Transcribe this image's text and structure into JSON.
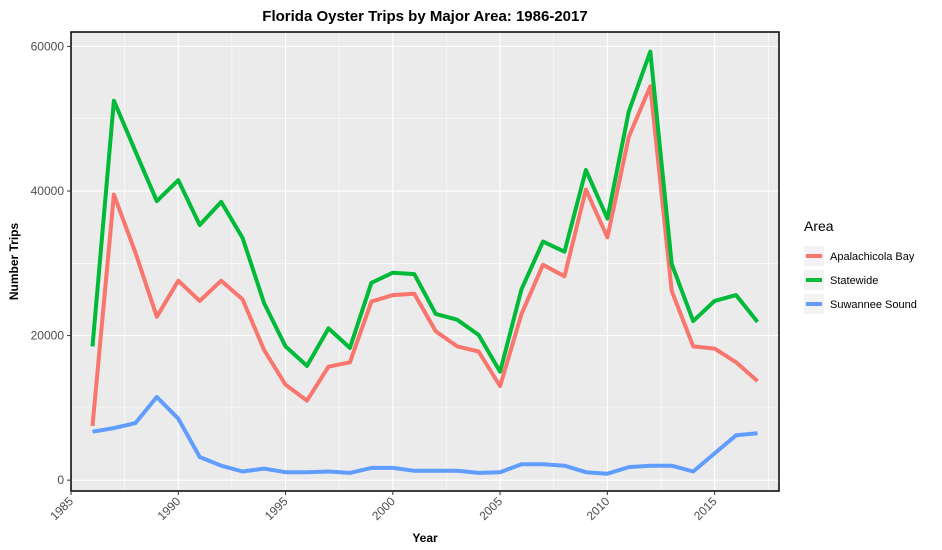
{
  "chart_data": {
    "type": "line",
    "title": "Florida Oyster Trips by Major Area: 1986-2017",
    "xlabel": "Year",
    "ylabel": "Number Trips",
    "xlim": [
      1985,
      2018
    ],
    "ylim": [
      -1500,
      62000
    ],
    "x_ticks": [
      1985,
      1990,
      1995,
      2000,
      2005,
      2010,
      2015
    ],
    "y_ticks": [
      0,
      20000,
      40000,
      60000
    ],
    "x_tick_labels": [
      "1985",
      "1990",
      "1995",
      "2000",
      "2005",
      "2010",
      "2015"
    ],
    "y_tick_labels": [
      "0",
      "20000",
      "40000",
      "60000"
    ],
    "grid": true,
    "legend": {
      "title": "Area",
      "position": "right"
    },
    "x": [
      1986,
      1987,
      1988,
      1989,
      1990,
      1991,
      1992,
      1993,
      1994,
      1995,
      1996,
      1997,
      1998,
      1999,
      2000,
      2001,
      2002,
      2003,
      2004,
      2005,
      2006,
      2007,
      2008,
      2009,
      2010,
      2011,
      2012,
      2013,
      2014,
      2015,
      2016,
      2017
    ],
    "series": [
      {
        "name": "Apalachicola Bay",
        "color": "#F8766D",
        "values": [
          7500,
          39500,
          31500,
          22600,
          27600,
          24800,
          27600,
          25000,
          18000,
          13200,
          11000,
          15700,
          16300,
          24700,
          25600,
          25800,
          20600,
          18500,
          17800,
          13000,
          23000,
          29800,
          28200,
          40200,
          33600,
          47500,
          54500,
          26200,
          18500,
          18200,
          16300,
          13700
        ]
      },
      {
        "name": "Statewide",
        "color": "#00BA38",
        "values": [
          18500,
          52500,
          45500,
          38600,
          41500,
          35300,
          38500,
          33500,
          24500,
          18500,
          15800,
          21000,
          18300,
          27300,
          28700,
          28500,
          23000,
          22200,
          20100,
          15000,
          26400,
          33000,
          31600,
          42900,
          36200,
          51000,
          59300,
          29900,
          22000,
          24800,
          25600,
          21900
        ]
      },
      {
        "name": "Suwannee Sound",
        "color": "#619CFF",
        "values": [
          6700,
          7200,
          7900,
          11500,
          8500,
          3200,
          2000,
          1200,
          1600,
          1100,
          1100,
          1200,
          1000,
          1700,
          1700,
          1300,
          1300,
          1300,
          1000,
          1100,
          2200,
          2200,
          2000,
          1100,
          900,
          1800,
          2000,
          2000,
          1200,
          3700,
          6200,
          6500
        ]
      }
    ]
  }
}
